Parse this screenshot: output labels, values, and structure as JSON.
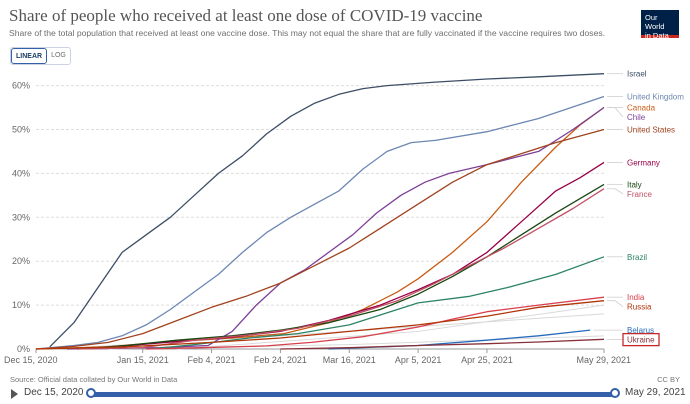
{
  "header": {
    "title": "Share of people who received at least one dose of COVID-19 vaccine",
    "subtitle": "Share of the total population that received at least one vaccine dose. This may not equal the share that are fully vaccinated if the vaccine requires two doses.",
    "logo_line1": "Our World",
    "logo_line2": "in Data"
  },
  "scale_toggle": {
    "linear": "LINEAR",
    "log": "LOG",
    "active": "LINEAR"
  },
  "footer": {
    "source": "Source: Official data collated by Our World in Data",
    "license": "CC BY"
  },
  "timeline": {
    "start": "Dec 15, 2020",
    "end": "May 29, 2021"
  },
  "chart_data": {
    "type": "line",
    "x_start": "2020-12-15",
    "x_end": "2021-05-29",
    "xticks": [
      "Dec 15, 2020",
      "Jan 15, 2021",
      "Feb 4, 2021",
      "Feb 24, 2021",
      "Mar 16, 2021",
      "Apr 5, 2021",
      "Apr 25, 2021",
      "May 29, 2021"
    ],
    "yticks": [
      "0%",
      "10%",
      "20%",
      "30%",
      "40%",
      "50%",
      "60%"
    ],
    "ylim": [
      0,
      64
    ],
    "y_unit": "%",
    "grid": "horizontal dashed",
    "legend": "right",
    "highlighted": "Ukraine",
    "series": [
      {
        "name": "Israel",
        "color": "#3c4e66",
        "points": [
          [
            "2020-12-19",
            0.5
          ],
          [
            "2020-12-26",
            6
          ],
          [
            "2021-01-02",
            14
          ],
          [
            "2021-01-09",
            22
          ],
          [
            "2021-01-16",
            26
          ],
          [
            "2021-01-23",
            30
          ],
          [
            "2021-01-30",
            35
          ],
          [
            "2021-02-06",
            40
          ],
          [
            "2021-02-13",
            44
          ],
          [
            "2021-02-20",
            49
          ],
          [
            "2021-02-27",
            53
          ],
          [
            "2021-03-06",
            56
          ],
          [
            "2021-03-13",
            58
          ],
          [
            "2021-03-20",
            59.3
          ],
          [
            "2021-03-27",
            60
          ],
          [
            "2021-04-10",
            60.8
          ],
          [
            "2021-04-25",
            61.5
          ],
          [
            "2021-05-10",
            62
          ],
          [
            "2021-05-29",
            62.7
          ]
        ]
      },
      {
        "name": "United Kingdom",
        "color": "#6d87b3",
        "points": [
          [
            "2020-12-15",
            0
          ],
          [
            "2020-12-26",
            0.8
          ],
          [
            "2021-01-02",
            1.5
          ],
          [
            "2021-01-09",
            3
          ],
          [
            "2021-01-16",
            5.5
          ],
          [
            "2021-01-23",
            9
          ],
          [
            "2021-01-30",
            13
          ],
          [
            "2021-02-06",
            17
          ],
          [
            "2021-02-13",
            22
          ],
          [
            "2021-02-20",
            26.5
          ],
          [
            "2021-02-27",
            30
          ],
          [
            "2021-03-06",
            33
          ],
          [
            "2021-03-13",
            36
          ],
          [
            "2021-03-20",
            41
          ],
          [
            "2021-03-27",
            45
          ],
          [
            "2021-04-03",
            47
          ],
          [
            "2021-04-10",
            47.5
          ],
          [
            "2021-04-25",
            49.5
          ],
          [
            "2021-05-10",
            52.5
          ],
          [
            "2021-05-29",
            57.5
          ]
        ]
      },
      {
        "name": "Canada",
        "color": "#c85c15",
        "points": [
          [
            "2020-12-15",
            0
          ],
          [
            "2021-01-05",
            0.5
          ],
          [
            "2021-01-20",
            1.5
          ],
          [
            "2021-02-10",
            2.5
          ],
          [
            "2021-02-25",
            3.5
          ],
          [
            "2021-03-10",
            6
          ],
          [
            "2021-03-20",
            9
          ],
          [
            "2021-03-30",
            13
          ],
          [
            "2021-04-05",
            16
          ],
          [
            "2021-04-15",
            22
          ],
          [
            "2021-04-25",
            29
          ],
          [
            "2021-05-05",
            38
          ],
          [
            "2021-05-15",
            46
          ],
          [
            "2021-05-22",
            51
          ],
          [
            "2021-05-29",
            55
          ]
        ]
      },
      {
        "name": "Chile",
        "color": "#7e3f98",
        "points": [
          [
            "2020-12-24",
            0
          ],
          [
            "2021-01-20",
            0.3
          ],
          [
            "2021-02-03",
            0.8
          ],
          [
            "2021-02-10",
            4
          ],
          [
            "2021-02-17",
            10
          ],
          [
            "2021-02-24",
            15
          ],
          [
            "2021-03-03",
            18
          ],
          [
            "2021-03-10",
            22
          ],
          [
            "2021-03-17",
            26
          ],
          [
            "2021-03-24",
            31
          ],
          [
            "2021-03-31",
            35
          ],
          [
            "2021-04-07",
            38
          ],
          [
            "2021-04-14",
            40
          ],
          [
            "2021-04-25",
            42
          ],
          [
            "2021-05-10",
            45
          ],
          [
            "2021-05-20",
            50
          ],
          [
            "2021-05-29",
            55
          ]
        ]
      },
      {
        "name": "United States",
        "color": "#a0421e",
        "points": [
          [
            "2020-12-15",
            0
          ],
          [
            "2020-12-26",
            0.6
          ],
          [
            "2021-01-05",
            1.5
          ],
          [
            "2021-01-15",
            3.5
          ],
          [
            "2021-01-25",
            6.5
          ],
          [
            "2021-02-04",
            9.5
          ],
          [
            "2021-02-14",
            12
          ],
          [
            "2021-02-24",
            15
          ],
          [
            "2021-03-06",
            19
          ],
          [
            "2021-03-16",
            23
          ],
          [
            "2021-03-26",
            28
          ],
          [
            "2021-04-05",
            33
          ],
          [
            "2021-04-15",
            38
          ],
          [
            "2021-04-25",
            42
          ],
          [
            "2021-05-05",
            44.5
          ],
          [
            "2021-05-15",
            47
          ],
          [
            "2021-05-29",
            50
          ]
        ]
      },
      {
        "name": "Germany",
        "color": "#970046",
        "points": [
          [
            "2020-12-27",
            0
          ],
          [
            "2021-01-10",
            0.7
          ],
          [
            "2021-01-25",
            1.7
          ],
          [
            "2021-02-10",
            2.7
          ],
          [
            "2021-02-24",
            4
          ],
          [
            "2021-03-10",
            6.5
          ],
          [
            "2021-03-25",
            10
          ],
          [
            "2021-04-05",
            13.5
          ],
          [
            "2021-04-15",
            17
          ],
          [
            "2021-04-25",
            22
          ],
          [
            "2021-05-05",
            29
          ],
          [
            "2021-05-15",
            36
          ],
          [
            "2021-05-22",
            39
          ],
          [
            "2021-05-29",
            42.5
          ]
        ]
      },
      {
        "name": "Italy",
        "color": "#18470f",
        "points": [
          [
            "2020-12-27",
            0
          ],
          [
            "2021-01-10",
            0.8
          ],
          [
            "2021-01-25",
            2
          ],
          [
            "2021-02-10",
            3
          ],
          [
            "2021-02-24",
            4.3
          ],
          [
            "2021-03-10",
            6
          ],
          [
            "2021-03-25",
            9
          ],
          [
            "2021-04-05",
            12.5
          ],
          [
            "2021-04-15",
            16.5
          ],
          [
            "2021-04-25",
            21
          ],
          [
            "2021-05-05",
            26
          ],
          [
            "2021-05-15",
            31
          ],
          [
            "2021-05-29",
            37.5
          ]
        ]
      },
      {
        "name": "France",
        "color": "#c15065",
        "points": [
          [
            "2020-12-27",
            0
          ],
          [
            "2021-01-15",
            0.3
          ],
          [
            "2021-01-30",
            2
          ],
          [
            "2021-02-15",
            3.2
          ],
          [
            "2021-03-01",
            4.7
          ],
          [
            "2021-03-16",
            7.5
          ],
          [
            "2021-03-30",
            11
          ],
          [
            "2021-04-10",
            15
          ],
          [
            "2021-04-20",
            19
          ],
          [
            "2021-04-30",
            23
          ],
          [
            "2021-05-10",
            27.5
          ],
          [
            "2021-05-20",
            32
          ],
          [
            "2021-05-29",
            36.5
          ]
        ]
      },
      {
        "name": "Brazil",
        "color": "#2c8465",
        "points": [
          [
            "2021-01-17",
            0
          ],
          [
            "2021-01-30",
            1
          ],
          [
            "2021-02-15",
            2.5
          ],
          [
            "2021-03-01",
            3.5
          ],
          [
            "2021-03-16",
            5.5
          ],
          [
            "2021-03-26",
            8
          ],
          [
            "2021-04-05",
            10.5
          ],
          [
            "2021-04-20",
            12
          ],
          [
            "2021-05-01",
            14
          ],
          [
            "2021-05-15",
            17
          ],
          [
            "2021-05-29",
            21
          ]
        ]
      },
      {
        "name": "India",
        "color": "#d6404d",
        "points": [
          [
            "2021-01-16",
            0
          ],
          [
            "2021-02-01",
            0.3
          ],
          [
            "2021-02-20",
            0.7
          ],
          [
            "2021-03-05",
            1.5
          ],
          [
            "2021-03-20",
            2.8
          ],
          [
            "2021-04-05",
            5
          ],
          [
            "2021-04-15",
            6.8
          ],
          [
            "2021-04-25",
            8.5
          ],
          [
            "2021-05-10",
            10
          ],
          [
            "2021-05-29",
            11.8
          ]
        ]
      },
      {
        "name": "Russia",
        "color": "#b13507",
        "points": [
          [
            "2020-12-15",
            0
          ],
          [
            "2021-01-10",
            0.5
          ],
          [
            "2021-02-04",
            1.5
          ],
          [
            "2021-02-24",
            2.5
          ],
          [
            "2021-03-16",
            4
          ],
          [
            "2021-04-05",
            5.5
          ],
          [
            "2021-04-25",
            7.5
          ],
          [
            "2021-05-10",
            9.5
          ],
          [
            "2021-05-29",
            11
          ]
        ]
      },
      {
        "name": "Belarus",
        "color": "#286bbb",
        "points": [
          [
            "2021-03-10",
            0
          ],
          [
            "2021-04-05",
            0.8
          ],
          [
            "2021-04-25",
            2
          ],
          [
            "2021-05-10",
            3
          ],
          [
            "2021-05-25",
            4.3
          ]
        ]
      },
      {
        "name": "Ukraine",
        "color": "#883039",
        "points": [
          [
            "2021-02-24",
            0
          ],
          [
            "2021-03-16",
            0.3
          ],
          [
            "2021-04-05",
            0.8
          ],
          [
            "2021-04-25",
            1.2
          ],
          [
            "2021-05-10",
            1.6
          ],
          [
            "2021-05-29",
            2.2
          ]
        ]
      }
    ],
    "extra_lines_color": "#d9d9d9"
  }
}
